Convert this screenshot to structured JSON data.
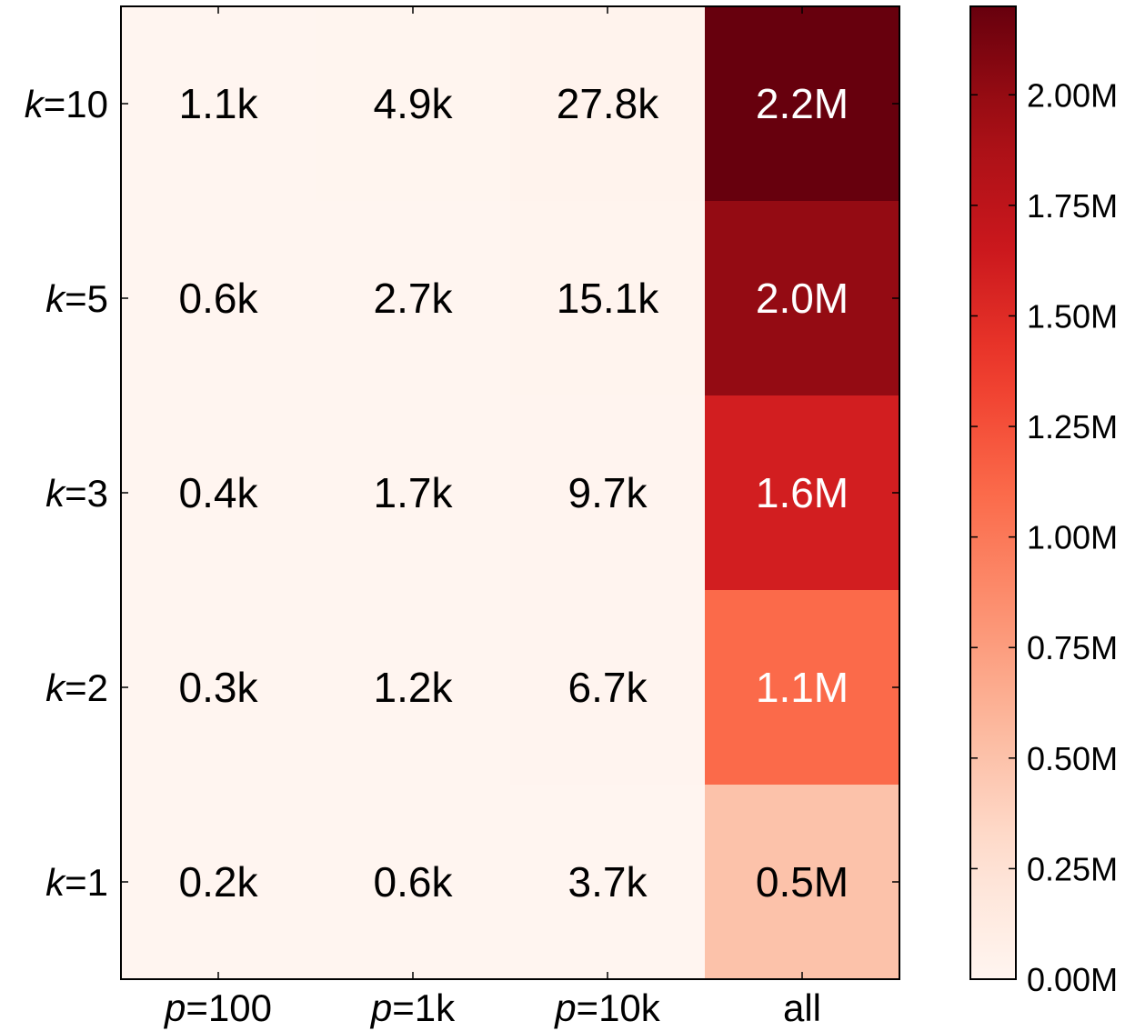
{
  "chart_data": {
    "type": "heatmap",
    "title": "",
    "xlabel": "",
    "ylabel": "",
    "x_categories": [
      {
        "var": "p",
        "eq": "=100"
      },
      {
        "var": "p",
        "eq": "=1k"
      },
      {
        "var": "p",
        "eq": "=10k"
      },
      {
        "var": "",
        "eq": "all"
      }
    ],
    "y_categories": [
      {
        "var": "k",
        "eq": "=10"
      },
      {
        "var": "k",
        "eq": "=5"
      },
      {
        "var": "k",
        "eq": "=3"
      },
      {
        "var": "k",
        "eq": "=2"
      },
      {
        "var": "k",
        "eq": "=1"
      }
    ],
    "values": [
      [
        1100,
        4900,
        27800,
        2200000
      ],
      [
        600,
        2700,
        15100,
        2000000
      ],
      [
        400,
        1700,
        9700,
        1600000
      ],
      [
        300,
        1200,
        6700,
        1100000
      ],
      [
        200,
        600,
        3700,
        500000
      ]
    ],
    "cell_labels": [
      [
        "1.1k",
        "4.9k",
        "27.8k",
        "2.2M"
      ],
      [
        "0.6k",
        "2.7k",
        "15.1k",
        "2.0M"
      ],
      [
        "0.4k",
        "1.7k",
        "9.7k",
        "1.6M"
      ],
      [
        "0.3k",
        "1.2k",
        "6.7k",
        "1.1M"
      ],
      [
        "0.2k",
        "0.6k",
        "3.7k",
        "0.5M"
      ]
    ],
    "colorbar": {
      "colormap": "Reds",
      "range": [
        0,
        2200000
      ],
      "ticks": [
        0,
        250000,
        500000,
        750000,
        1000000,
        1250000,
        1500000,
        1750000,
        2000000
      ],
      "tick_labels": [
        "0.00M",
        "0.25M",
        "0.50M",
        "0.75M",
        "1.00M",
        "1.25M",
        "1.50M",
        "1.75M",
        "2.00M"
      ]
    },
    "grid": false
  }
}
